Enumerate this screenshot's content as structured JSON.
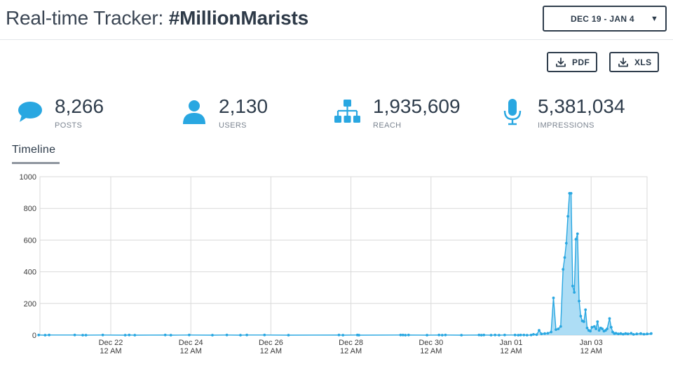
{
  "header": {
    "title_prefix": "Real-time Tracker: ",
    "title_tag": "#MillionMarists",
    "date_range": "DEC 19 - JAN 4",
    "date_caret": "▼"
  },
  "exports": [
    {
      "label": "PDF",
      "icon": "download-icon"
    },
    {
      "label": "XLS",
      "icon": "download-icon"
    }
  ],
  "stats": [
    {
      "value": "8,266",
      "caption": "POSTS",
      "icon": "speech-bubble-icon"
    },
    {
      "value": "2,130",
      "caption": "USERS",
      "icon": "user-icon"
    },
    {
      "value": "1,935,609",
      "caption": "REACH",
      "icon": "network-icon"
    },
    {
      "value": "5,381,034",
      "caption": "IMPRESSIONS",
      "icon": "microphone-icon"
    }
  ],
  "colors": {
    "accent": "#29a7e1",
    "area_fill": "#9fd7f3",
    "grid": "#d9d9d9",
    "text_dark": "#2f3d4c"
  },
  "tabs": [
    {
      "label": "Timeline"
    }
  ],
  "chart_data": {
    "type": "area",
    "title": "",
    "xlabel": "",
    "ylabel": "",
    "x_unit": "days since Dec 21 12 AM",
    "xlim": [
      -0.9,
      6.75
    ],
    "ylim": [
      0,
      1000
    ],
    "yticks": [
      0,
      200,
      400,
      600,
      800,
      1000
    ],
    "xticks": [
      {
        "day": 0,
        "line1": "Dec 22",
        "line2": "12 AM"
      },
      {
        "day": 1,
        "line1": "Dec 24",
        "line2": "12 AM"
      },
      {
        "day": 2,
        "line1": "Dec 26",
        "line2": "12 AM"
      },
      {
        "day": 3,
        "line1": "Dec 28",
        "line2": "12 AM"
      },
      {
        "day": 4,
        "line1": "Dec 30",
        "line2": "12 AM"
      },
      {
        "day": 5,
        "line1": "Jan 01",
        "line2": "12 AM"
      },
      {
        "day": 6,
        "line1": "Jan 03",
        "line2": "12 AM"
      }
    ],
    "series": [
      {
        "name": "Posts",
        "points": [
          [
            -0.9,
            1
          ],
          [
            -0.82,
            0
          ],
          [
            -0.77,
            1
          ],
          [
            -0.45,
            1
          ],
          [
            -0.35,
            0
          ],
          [
            -0.31,
            0
          ],
          [
            -0.1,
            1
          ],
          [
            0.18,
            0
          ],
          [
            0.23,
            1
          ],
          [
            0.3,
            0
          ],
          [
            0.68,
            1
          ],
          [
            0.75,
            0
          ],
          [
            0.98,
            1
          ],
          [
            1.27,
            0
          ],
          [
            1.45,
            1
          ],
          [
            1.62,
            0
          ],
          [
            1.7,
            1
          ],
          [
            1.92,
            1
          ],
          [
            2.22,
            0
          ],
          [
            2.85,
            1
          ],
          [
            2.9,
            0
          ],
          [
            3.08,
            1
          ],
          [
            3.1,
            0
          ],
          [
            3.62,
            1
          ],
          [
            3.65,
            1
          ],
          [
            3.68,
            0
          ],
          [
            3.72,
            1
          ],
          [
            3.95,
            0
          ],
          [
            4.1,
            1
          ],
          [
            4.14,
            0
          ],
          [
            4.18,
            1
          ],
          [
            4.38,
            0
          ],
          [
            4.6,
            1
          ],
          [
            4.63,
            0
          ],
          [
            4.66,
            1
          ],
          [
            4.75,
            0
          ],
          [
            4.8,
            1
          ],
          [
            4.85,
            0
          ],
          [
            4.92,
            1
          ],
          [
            5.05,
            1
          ],
          [
            5.09,
            0
          ],
          [
            5.12,
            1
          ],
          [
            5.16,
            1
          ],
          [
            5.2,
            0
          ],
          [
            5.25,
            1
          ],
          [
            5.28,
            5
          ],
          [
            5.32,
            3
          ],
          [
            5.35,
            30
          ],
          [
            5.38,
            8
          ],
          [
            5.42,
            10
          ],
          [
            5.46,
            12
          ],
          [
            5.5,
            20
          ],
          [
            5.53,
            235
          ],
          [
            5.56,
            35
          ],
          [
            5.59,
            40
          ],
          [
            5.62,
            55
          ],
          [
            5.65,
            415
          ],
          [
            5.67,
            490
          ],
          [
            5.69,
            580
          ],
          [
            5.71,
            750
          ],
          [
            5.73,
            895
          ],
          [
            5.75,
            895
          ],
          [
            5.77,
            310
          ],
          [
            5.79,
            270
          ],
          [
            5.81,
            605
          ],
          [
            5.83,
            640
          ],
          [
            5.85,
            215
          ],
          [
            5.87,
            120
          ],
          [
            5.89,
            90
          ],
          [
            5.91,
            85
          ],
          [
            5.93,
            160
          ],
          [
            5.95,
            45
          ],
          [
            5.97,
            30
          ],
          [
            5.99,
            25
          ],
          [
            6.01,
            50
          ],
          [
            6.04,
            55
          ],
          [
            6.06,
            40
          ],
          [
            6.08,
            85
          ],
          [
            6.1,
            30
          ],
          [
            6.12,
            45
          ],
          [
            6.14,
            40
          ],
          [
            6.16,
            25
          ],
          [
            6.18,
            30
          ],
          [
            6.2,
            40
          ],
          [
            6.23,
            105
          ],
          [
            6.25,
            50
          ],
          [
            6.27,
            20
          ],
          [
            6.29,
            10
          ],
          [
            6.31,
            12
          ],
          [
            6.34,
            8
          ],
          [
            6.37,
            10
          ],
          [
            6.4,
            6
          ],
          [
            6.43,
            10
          ],
          [
            6.46,
            8
          ],
          [
            6.5,
            12
          ],
          [
            6.53,
            5
          ],
          [
            6.57,
            8
          ],
          [
            6.62,
            10
          ],
          [
            6.66,
            6
          ],
          [
            6.7,
            8
          ],
          [
            6.75,
            10
          ]
        ]
      }
    ]
  }
}
